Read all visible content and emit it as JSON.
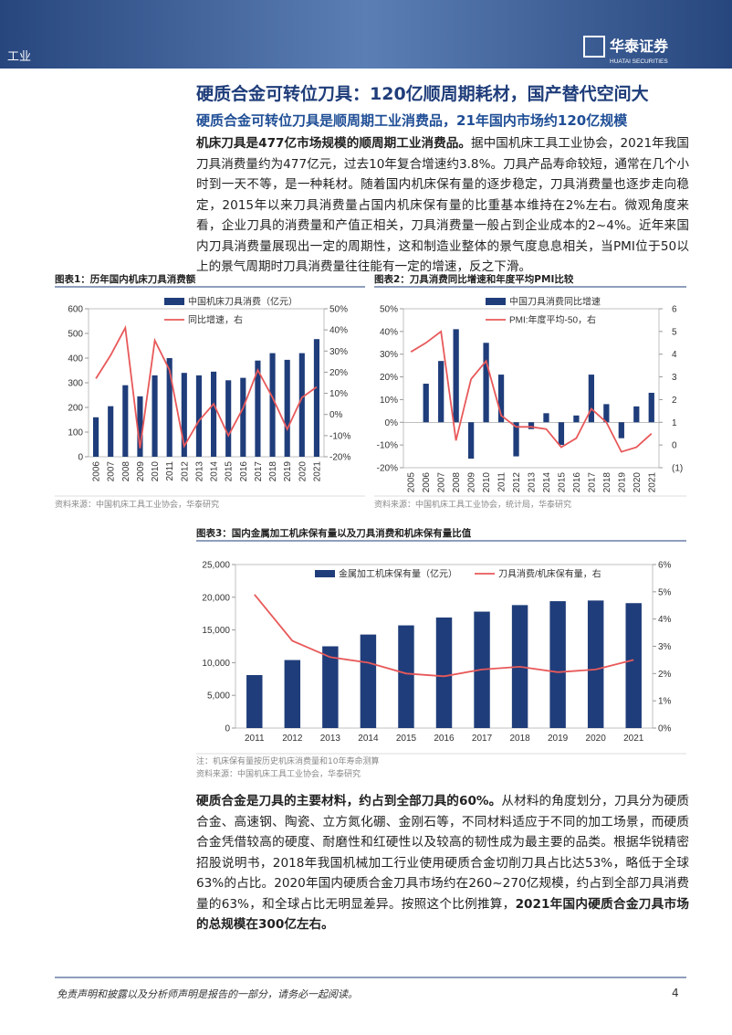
{
  "header": {
    "section": "工业",
    "brand": "华泰证券",
    "brand_en": "HUATAI SECURITIES"
  },
  "title": "硬质合金可转位刀具：120亿顺周期耗材，国产替代空间大",
  "subtitle": "硬质合金可转位刀具是顺周期工业消费品，21年国内市场约120亿规模",
  "paragraphs": [
    [
      {
        "text": "机床刀具是477亿市场规模的顺周期工业消费品。",
        "bold": true
      },
      {
        "text": "据中国机床工具工业协会，2021年我国刀具消费量约为477亿元，过去10年复合增速约3.8%。刀具产品寿命较短，通常在几个小时到一天不等，是一种耗材。随着国内机床保有量的逐步稳定，刀具消费量也逐步走向稳定，2015年以来刀具消费量占国内机床保有量的比重基本维持在2%左右。微观角度来看，企业刀具的消费量和产值正相关，刀具消费量一般占到企业成本的2~4%。近年来国内刀具消费量展现出一定的周期性，这和制造业整体的景气度息息相关，当PMI位于50以上的景气周期时刀具消费量往往能有一定的增速，反之下滑。",
        "bold": false
      }
    ],
    [
      {
        "text": "硬质合金是刀具的主要材料，约占到全部刀具的60%。",
        "bold": true
      },
      {
        "text": "从材料的角度划分，刀具分为硬质合金、高速钢、陶瓷、立方氮化硼、金刚石等，不同材料适应于不同的加工场景，而硬质合金凭借较高的硬度、耐磨性和红硬性以及较高的韧性成为最主要的品类。根据华锐精密招股说明书，2018年我国机械加工行业使用硬质合金切削刀具占比达53%，略低于全球63%的占比。2020年国内硬质合金刀具市场约在260~270亿规模，约占到全部刀具消费量的63%，和全球占比无明显差异。按照这个比例推算，",
        "bold": false
      },
      {
        "text": "2021年国内硬质合金刀具市场的总规模在300亿左右。",
        "bold": true
      }
    ]
  ],
  "chart_data": [
    {
      "type": "combo",
      "title": "图表1：历年国内机床刀具消费额",
      "source": "资料来源：中国机床工具工业协会，华泰研究",
      "categories": [
        "2006",
        "2007",
        "2008",
        "2009",
        "2010",
        "2011",
        "2012",
        "2013",
        "2014",
        "2015",
        "2016",
        "2017",
        "2018",
        "2019",
        "2020",
        "2021"
      ],
      "series": [
        {
          "name": "中国机床刀具消费（亿元）",
          "color": "#1f3d7a",
          "values": [
            160,
            205,
            290,
            245,
            330,
            400,
            340,
            330,
            345,
            310,
            320,
            390,
            420,
            393,
            420,
            477
          ]
        },
        {
          "name": "同比增速，右",
          "color": "#e8595a",
          "axis": "y2",
          "values": [
            17,
            28,
            41,
            -16,
            35,
            21,
            -15,
            -3,
            5,
            -10,
            3,
            21,
            8,
            -7,
            8,
            13
          ]
        }
      ],
      "ylim": [
        0,
        600
      ],
      "yticks": [
        0,
        100,
        200,
        300,
        400,
        500,
        600
      ],
      "y2lim": [
        -20,
        50
      ],
      "y2ticks": [
        {
          "value": -20,
          "label": "-20%"
        },
        {
          "value": -10,
          "label": "-10%"
        },
        {
          "value": 0,
          "label": "0%"
        },
        {
          "value": 10,
          "label": "10%"
        },
        {
          "value": 20,
          "label": "20%"
        },
        {
          "value": 30,
          "label": "30%"
        },
        {
          "value": 40,
          "label": "40%"
        },
        {
          "value": 50,
          "label": "50%"
        }
      ]
    },
    {
      "type": "combo",
      "title": "图表2：刀具消费同比增速和年度平均PMI比较",
      "source": "资料来源：中国机床工具工业协会，统计局，华泰研究",
      "categories": [
        "2005",
        "2006",
        "2007",
        "2008",
        "2009",
        "2010",
        "2011",
        "2012",
        "2013",
        "2014",
        "2015",
        "2016",
        "2017",
        "2018",
        "2019",
        "2020",
        "2021"
      ],
      "series": [
        {
          "name": "中国刀具消费同比增速",
          "color": "#1f3d7a",
          "values": [
            null,
            17,
            27,
            41,
            -16,
            35,
            21,
            -15,
            -3,
            4,
            -10,
            3,
            21,
            8,
            -7,
            7,
            13
          ]
        },
        {
          "name": "PMI:年度平均-50，右",
          "color": "#e8595a",
          "axis": "y2",
          "values": [
            4.1,
            4.5,
            5.0,
            0.2,
            2.9,
            3.7,
            1.3,
            0.8,
            0.8,
            0.7,
            -0.1,
            0.3,
            1.6,
            1.0,
            -0.3,
            -0.1,
            0.5
          ]
        }
      ],
      "ylim": [
        -20,
        50
      ],
      "yticks": [
        {
          "value": -20,
          "label": "-20%"
        },
        {
          "value": -10,
          "label": "-10%"
        },
        {
          "value": 0,
          "label": "0%"
        },
        {
          "value": 10,
          "label": "10%"
        },
        {
          "value": 20,
          "label": "20%"
        },
        {
          "value": 30,
          "label": "30%"
        },
        {
          "value": 40,
          "label": "40%"
        },
        {
          "value": 50,
          "label": "50%"
        }
      ],
      "y2lim": [
        -1,
        6
      ],
      "y2ticks": [
        {
          "value": -1,
          "label": "(1)"
        },
        0,
        1,
        2,
        3,
        4,
        5,
        6
      ]
    },
    {
      "type": "combo",
      "title": "图表3：国内金属加工机床保有量以及刀具消费和机床保有量比值",
      "note": "注：机床保有量按历史机床消费量和10年寿命测算",
      "source": "资料来源：中国机床工具工业协会，华泰研究",
      "categories": [
        "2011",
        "2012",
        "2013",
        "2014",
        "2015",
        "2016",
        "2017",
        "2018",
        "2019",
        "2020",
        "2021"
      ],
      "series": [
        {
          "name": "金属加工机床保有量（亿元）",
          "color": "#1f3d7a",
          "values": [
            8100,
            10400,
            12500,
            14300,
            15700,
            16900,
            17800,
            18800,
            19400,
            19500,
            19100
          ]
        },
        {
          "name": "刀具消费/机床保有量，右",
          "color": "#e8595a",
          "axis": "y2",
          "values": [
            4.9,
            3.2,
            2.6,
            2.4,
            2.0,
            1.9,
            2.15,
            2.25,
            2.05,
            2.15,
            2.5
          ]
        }
      ],
      "ylim": [
        0,
        25000
      ],
      "yticks": [
        0,
        {
          "value": 5000,
          "label": "5,000"
        },
        {
          "value": 10000,
          "label": "10,000"
        },
        {
          "value": 15000,
          "label": "15,000"
        },
        {
          "value": 20000,
          "label": "20,000"
        },
        {
          "value": 25000,
          "label": "25,000"
        }
      ],
      "y2lim": [
        0,
        6
      ],
      "y2ticks": [
        {
          "value": 0,
          "label": "0%"
        },
        {
          "value": 1,
          "label": "1%"
        },
        {
          "value": 2,
          "label": "2%"
        },
        {
          "value": 3,
          "label": "3%"
        },
        {
          "value": 4,
          "label": "4%"
        },
        {
          "value": 5,
          "label": "5%"
        },
        {
          "value": 6,
          "label": "6%"
        }
      ]
    }
  ],
  "footer": {
    "disclaimer": "免责声明和披露以及分析师声明是报告的一部分，请务必一起阅读。",
    "page": "4"
  }
}
